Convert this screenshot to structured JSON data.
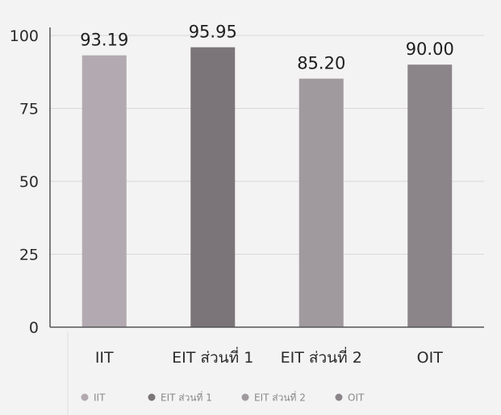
{
  "chart_data": {
    "type": "bar",
    "title": "",
    "xlabel": "",
    "ylabel": "",
    "ylim": [
      0,
      100
    ],
    "yticks": [
      0,
      25,
      50,
      75,
      100
    ],
    "categories": [
      "IIT",
      "EIT ส่วนที่ 1",
      "EIT ส่วนที่ 2",
      "OIT"
    ],
    "values": [
      93.19,
      95.95,
      85.2,
      90.0
    ],
    "value_labels": [
      "93.19",
      "95.95",
      "85.20",
      "90.00"
    ],
    "colors": [
      "#b2aab0",
      "#7b7479",
      "#a09a9e",
      "#8b8489"
    ],
    "grid": true,
    "legend": {
      "placement": "bottom",
      "entries": [
        "IIT",
        "EIT ส่วนที่ 1",
        "EIT ส่วนที่ 2",
        "OIT"
      ]
    }
  }
}
